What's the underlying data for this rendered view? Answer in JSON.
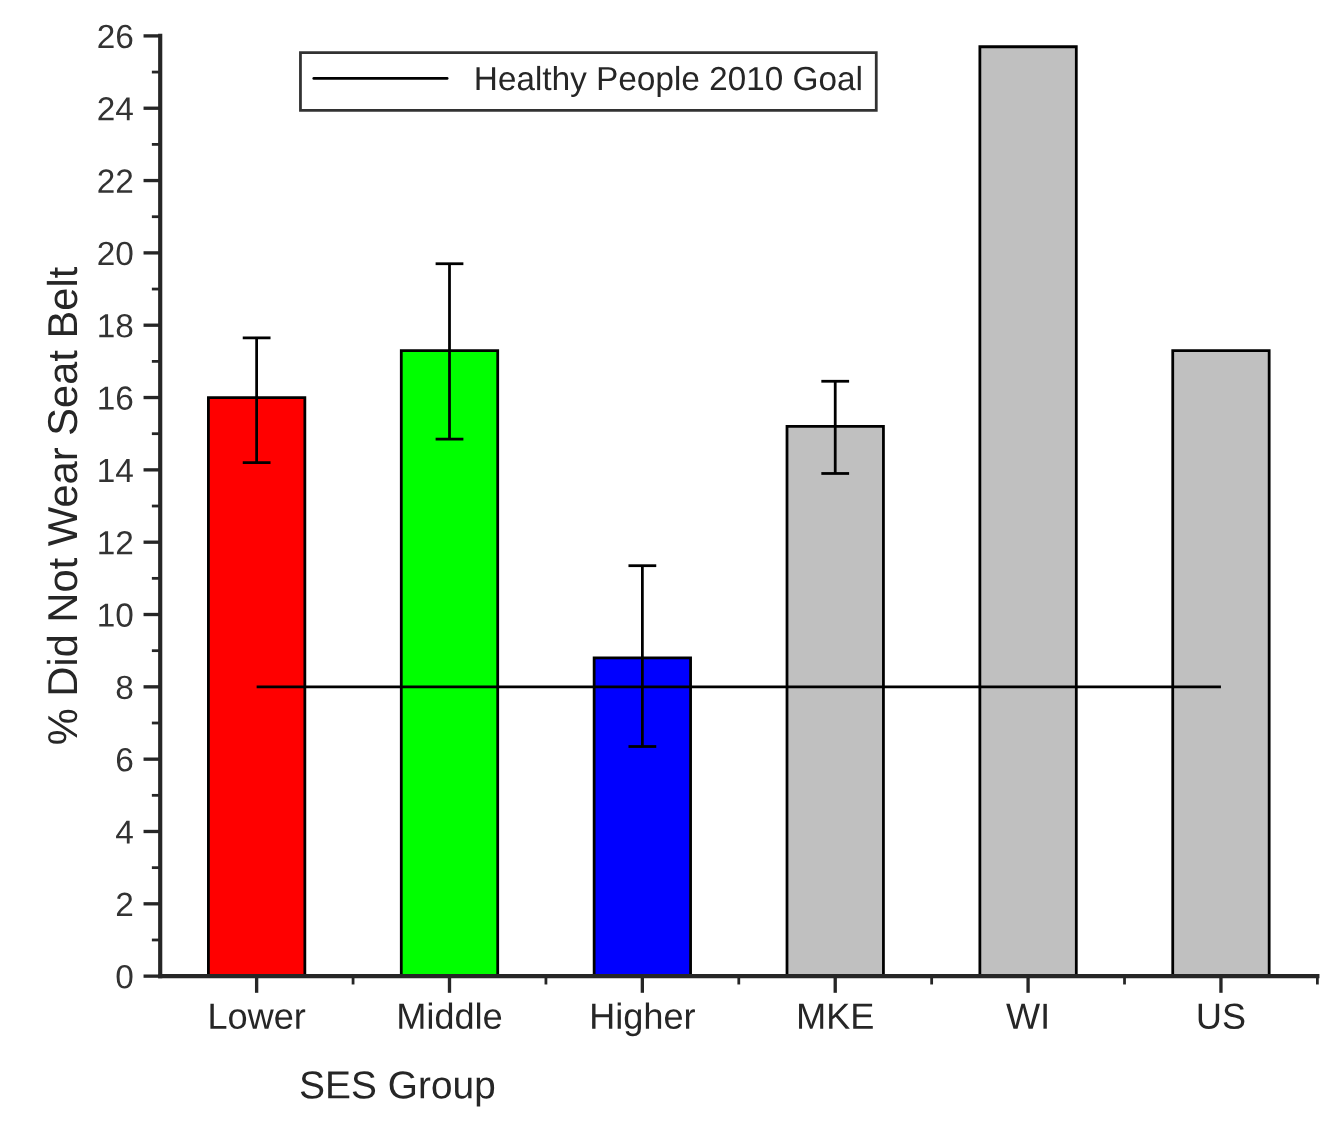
{
  "chart_data": {
    "type": "bar",
    "xlabel": "SES Group",
    "ylabel": "% Did Not Wear Seat Belt",
    "categories": [
      "Lower",
      "Middle",
      "Higher",
      "MKE",
      "WI",
      "US"
    ],
    "values": [
      16.0,
      17.3,
      8.8,
      15.2,
      25.7,
      17.3
    ],
    "colors": [
      "#ff0000",
      "#00ff00",
      "#0000ff",
      "#c0c0c0",
      "#c0c0c0",
      "#c0c0c0"
    ],
    "errors": [
      [
        14.2,
        17.65
      ],
      [
        14.85,
        19.7
      ],
      [
        6.35,
        11.35
      ],
      [
        13.9,
        16.45
      ],
      null,
      null
    ],
    "ref_lines": [
      {
        "axis": "y",
        "value": 8,
        "label": "Healthy People 2010 Goal",
        "color": "#000000",
        "line_style": "solid"
      }
    ],
    "ylim": [
      0,
      26
    ],
    "yticks": [
      0,
      2,
      4,
      6,
      8,
      10,
      12,
      14,
      16,
      18,
      20,
      22,
      24,
      26
    ],
    "grid": false,
    "legend": "top"
  }
}
